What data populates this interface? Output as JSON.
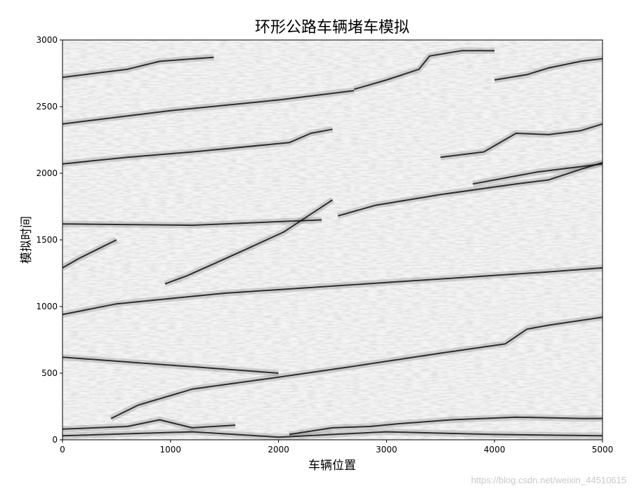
{
  "chart_data": {
    "type": "scatter",
    "title": "环形公路车辆堵车模拟",
    "xlabel": "车辆位置",
    "ylabel": "模拟时间",
    "xlim": [
      0,
      5000
    ],
    "ylim": [
      0,
      3000
    ],
    "xticks": [
      "0",
      "1000",
      "2000",
      "3000",
      "4000",
      "5000"
    ],
    "yticks": [
      "0",
      "500",
      "1000",
      "1500",
      "2000",
      "2500",
      "3000"
    ],
    "grid": false,
    "colormap": "grayscale space-time plot (dark = jammed vehicles)",
    "jam_traces": [
      {
        "points": [
          [
            0,
            1290
          ],
          [
            150,
            1360
          ],
          [
            300,
            1420
          ],
          [
            500,
            1500
          ]
        ]
      },
      {
        "points": [
          [
            950,
            1170
          ],
          [
            1150,
            1230
          ],
          [
            1400,
            1320
          ],
          [
            1700,
            1430
          ],
          [
            2050,
            1560
          ],
          [
            2350,
            1720
          ],
          [
            2500,
            1800
          ]
        ]
      },
      {
        "points": [
          [
            2550,
            1680
          ],
          [
            2900,
            1760
          ],
          [
            3500,
            1840
          ],
          [
            4200,
            1920
          ],
          [
            4500,
            1950
          ],
          [
            4800,
            2030
          ],
          [
            5000,
            2080
          ]
        ]
      },
      {
        "points": [
          [
            450,
            160
          ],
          [
            700,
            260
          ],
          [
            1200,
            380
          ],
          [
            2000,
            470
          ],
          [
            2600,
            540
          ],
          [
            3500,
            650
          ],
          [
            4100,
            720
          ],
          [
            4300,
            830
          ],
          [
            4500,
            860
          ],
          [
            5000,
            920
          ]
        ]
      },
      {
        "points": [
          [
            0,
            940
          ],
          [
            500,
            1020
          ],
          [
            1500,
            1100
          ],
          [
            3000,
            1180
          ],
          [
            4500,
            1260
          ],
          [
            5000,
            1290
          ]
        ]
      },
      {
        "points": [
          [
            0,
            2070
          ],
          [
            600,
            2120
          ],
          [
            1200,
            2160
          ],
          [
            2100,
            2230
          ],
          [
            2300,
            2300
          ],
          [
            2500,
            2330
          ]
        ]
      },
      {
        "points": [
          [
            3500,
            2120
          ],
          [
            3900,
            2160
          ],
          [
            4200,
            2300
          ],
          [
            4500,
            2290
          ],
          [
            4800,
            2320
          ],
          [
            5000,
            2370
          ]
        ]
      },
      {
        "points": [
          [
            0,
            2370
          ],
          [
            1000,
            2470
          ],
          [
            2000,
            2550
          ],
          [
            2700,
            2620
          ]
        ]
      },
      {
        "points": [
          [
            2700,
            2630
          ],
          [
            3000,
            2700
          ],
          [
            3300,
            2780
          ],
          [
            3400,
            2880
          ],
          [
            3700,
            2920
          ],
          [
            4000,
            2920
          ]
        ]
      },
      {
        "points": [
          [
            0,
            2720
          ],
          [
            600,
            2780
          ],
          [
            900,
            2840
          ],
          [
            1400,
            2870
          ]
        ]
      },
      {
        "points": [
          [
            4000,
            2700
          ],
          [
            4300,
            2740
          ],
          [
            4500,
            2790
          ],
          [
            4800,
            2840
          ],
          [
            5000,
            2860
          ]
        ]
      },
      {
        "points": [
          [
            0,
            80
          ],
          [
            300,
            90
          ],
          [
            600,
            100
          ],
          [
            900,
            150
          ],
          [
            1200,
            90
          ],
          [
            1600,
            110
          ]
        ]
      },
      {
        "points": [
          [
            2100,
            40
          ],
          [
            2500,
            90
          ],
          [
            2850,
            100
          ],
          [
            3100,
            120
          ],
          [
            3600,
            150
          ],
          [
            4200,
            170
          ],
          [
            4800,
            160
          ],
          [
            5000,
            160
          ]
        ]
      },
      {
        "points": [
          [
            0,
            30
          ],
          [
            1200,
            60
          ],
          [
            2000,
            20
          ],
          [
            3000,
            60
          ],
          [
            4000,
            40
          ],
          [
            5000,
            30
          ]
        ]
      },
      {
        "points": [
          [
            0,
            620
          ],
          [
            1000,
            560
          ],
          [
            2000,
            500
          ]
        ]
      },
      {
        "points": [
          [
            0,
            1620
          ],
          [
            1200,
            1610
          ],
          [
            2400,
            1650
          ]
        ]
      },
      {
        "points": [
          [
            3800,
            1920
          ],
          [
            4400,
            2010
          ],
          [
            5000,
            2070
          ]
        ]
      }
    ]
  },
  "watermark": "https://blog.csdn.net/weixin_44510615"
}
